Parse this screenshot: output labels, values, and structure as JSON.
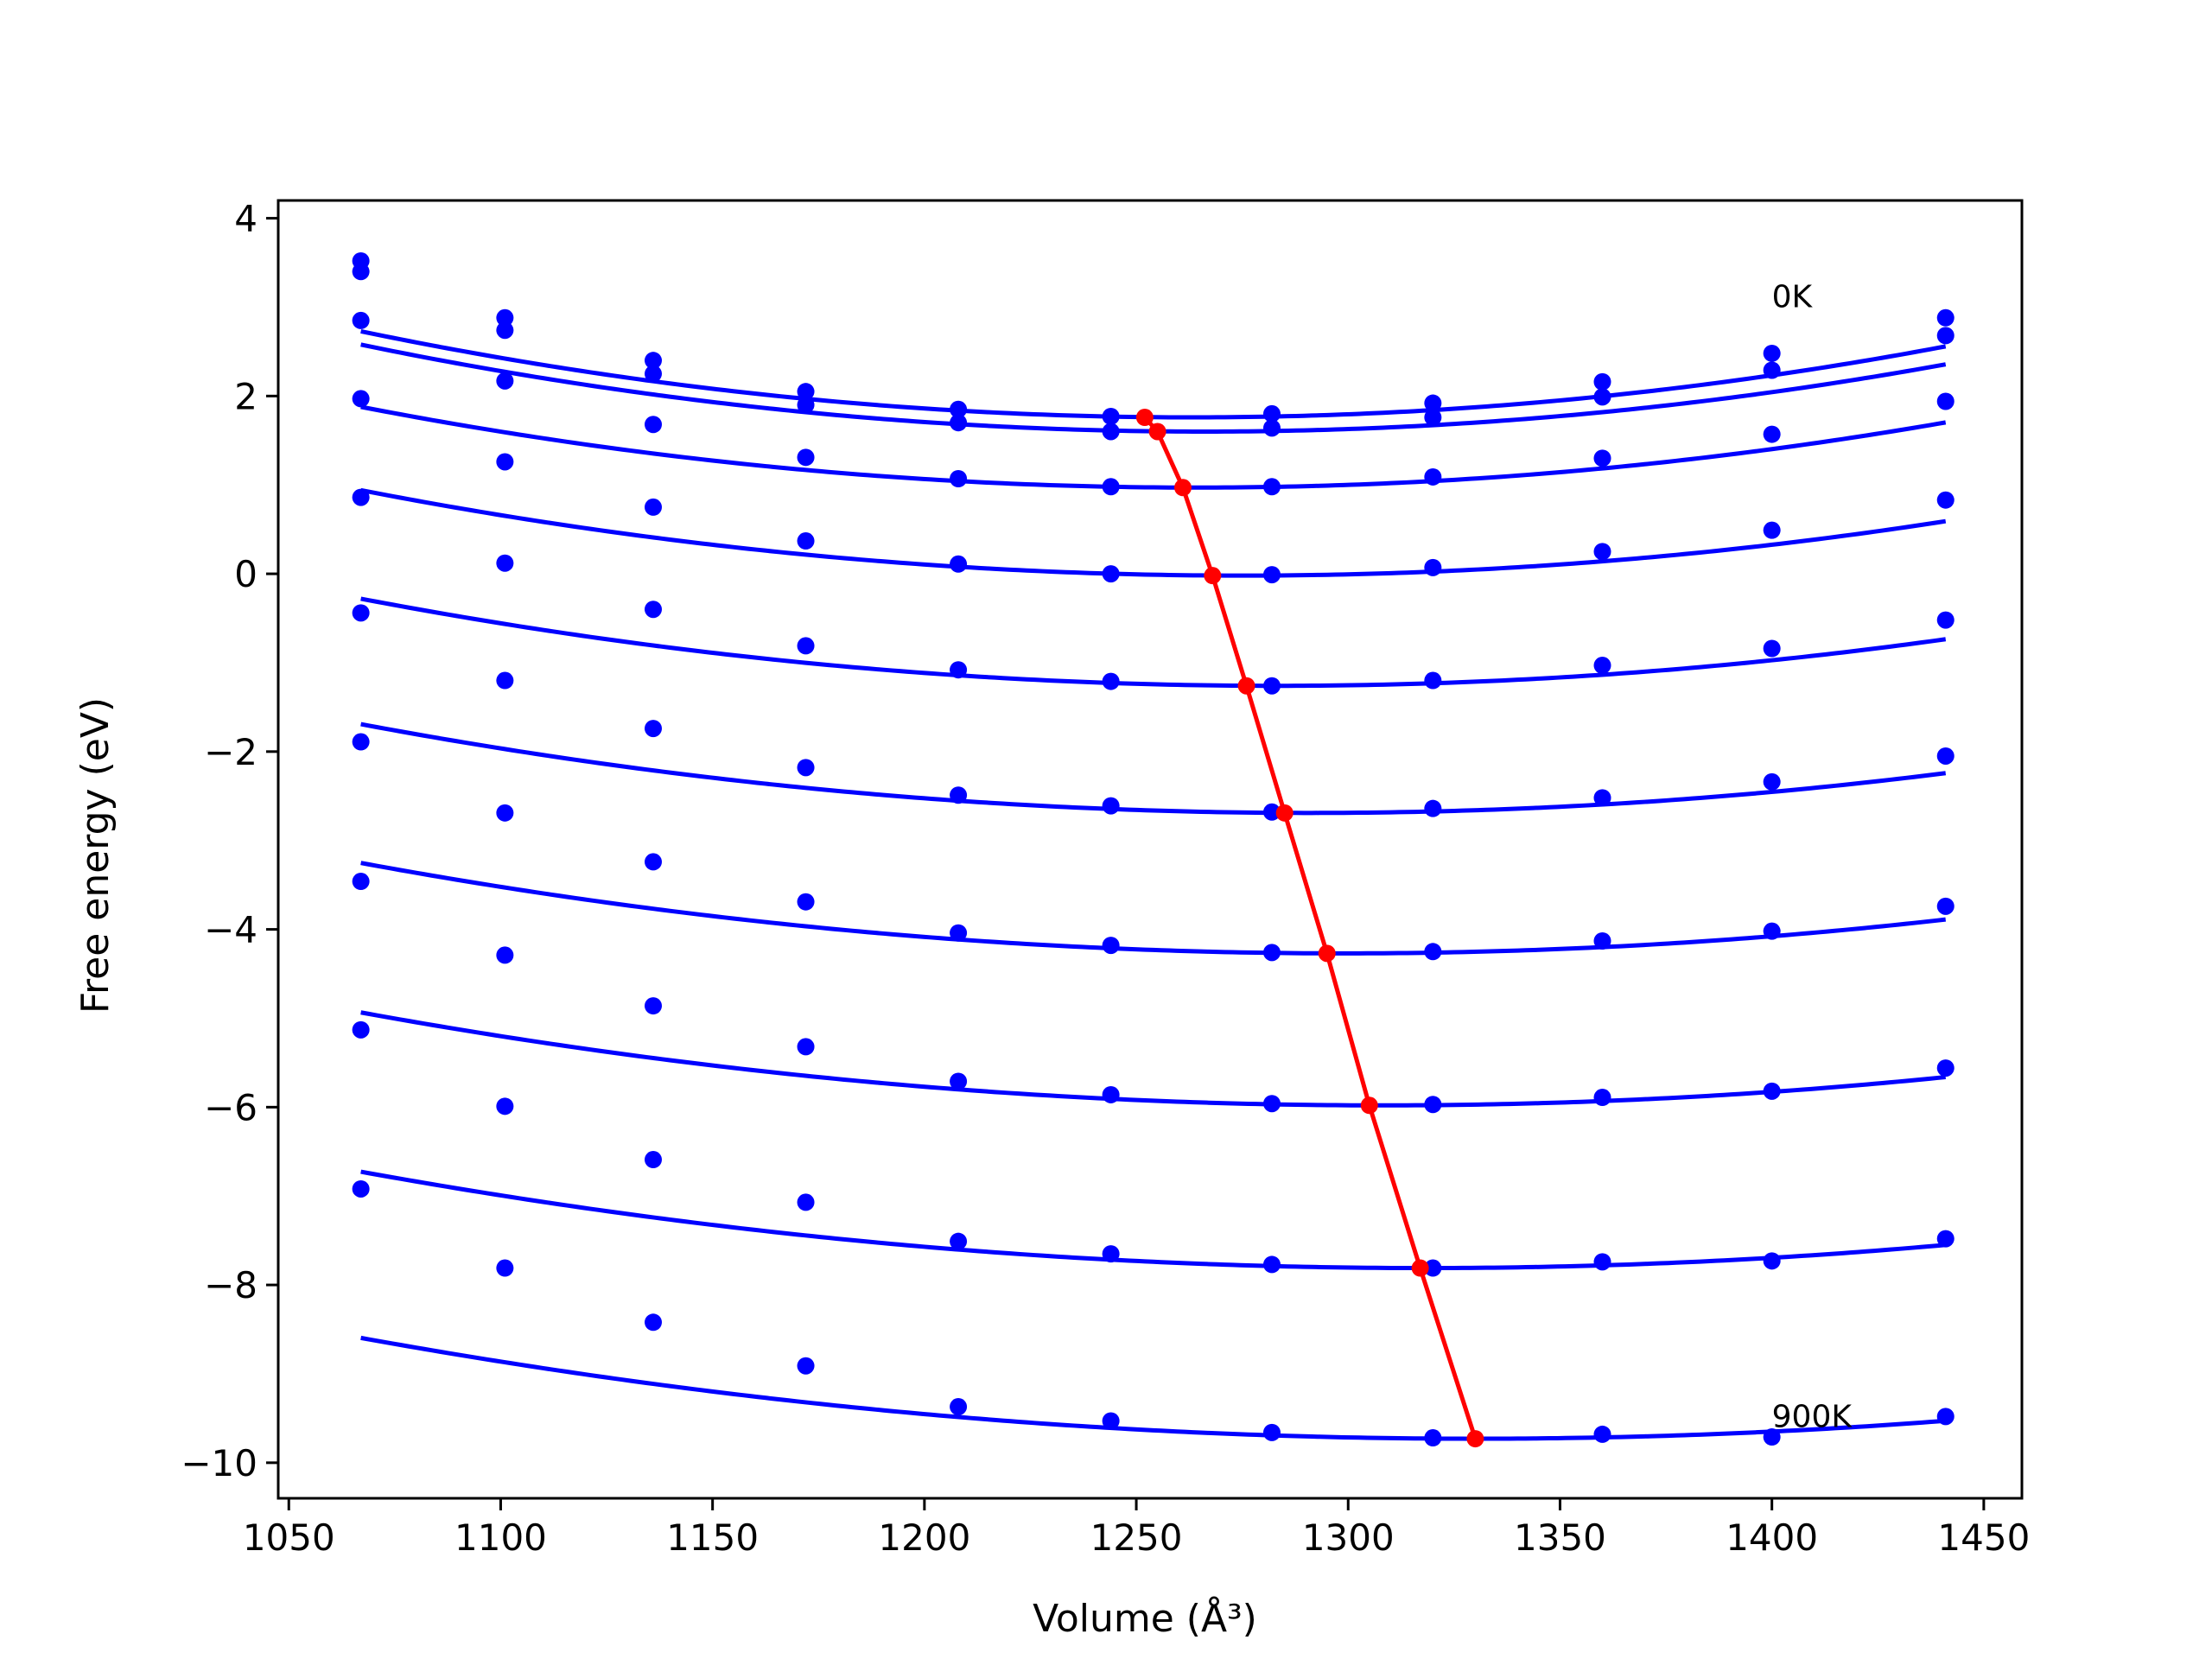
{
  "chart_data": {
    "type": "line",
    "xlabel": "Volume (Å³)",
    "ylabel": "Free energy (eV)",
    "xlim": [
      1047.5,
      1459
    ],
    "ylim": [
      -10.4,
      4.2
    ],
    "xticks": [
      1050,
      1100,
      1150,
      1200,
      1250,
      1300,
      1350,
      1400,
      1450
    ],
    "yticks": [
      4,
      2,
      0,
      -2,
      -4,
      -6,
      -8,
      -10
    ],
    "xtick_labels": [
      "1050",
      "1100",
      "1150",
      "1200",
      "1250",
      "1300",
      "1350",
      "1400",
      "1450"
    ],
    "ytick_labels": [
      "4",
      "2",
      "0",
      "−2",
      "−4",
      "−6",
      "−8",
      "−10"
    ],
    "x": [
      1067,
      1101,
      1136,
      1172,
      1208,
      1244,
      1282,
      1320,
      1360,
      1400,
      1441
    ],
    "grid": false,
    "legend": false,
    "colors": {
      "curves": "#0000ff",
      "minimum_line": "#ff0000",
      "frame": "#000000"
    },
    "annotations": [
      {
        "text": "0K",
        "x": 1400,
        "y": 3.0
      },
      {
        "text": "900K",
        "x": 1400,
        "y": -9.6
      }
    ],
    "series": [
      {
        "values": [
          3.52,
          2.88,
          2.4,
          2.05,
          1.85,
          1.77,
          1.8,
          1.92,
          2.16,
          2.48,
          2.88
        ],
        "fit": {
          "a": 2.52e-05,
          "v0": 1263,
          "e0": 1.76
        }
      },
      {
        "values": [
          3.4,
          2.74,
          2.25,
          1.9,
          1.7,
          1.6,
          1.64,
          1.76,
          1.99,
          2.29,
          2.68
        ],
        "fit": {
          "a": 2.47e-05,
          "v0": 1266,
          "e0": 1.6
        }
      },
      {
        "values": [
          2.85,
          2.17,
          1.68,
          1.31,
          1.07,
          0.98,
          0.98,
          1.09,
          1.3,
          1.57,
          1.94
        ],
        "fit": {
          "a": 2.34e-05,
          "v0": 1264,
          "e0": 0.97
        }
      },
      {
        "values": [
          1.97,
          1.26,
          0.75,
          0.37,
          0.11,
          0.0,
          -0.01,
          0.07,
          0.25,
          0.49,
          0.83
        ],
        "fit": {
          "a": 2.22e-05,
          "v0": 1275,
          "e0": -0.02
        }
      },
      {
        "values": [
          0.86,
          0.12,
          -0.4,
          -0.81,
          -1.08,
          -1.21,
          -1.26,
          -1.2,
          -1.03,
          -0.84,
          -0.52
        ],
        "fit": {
          "a": 2.1e-05,
          "v0": 1283,
          "e0": -1.26
        }
      },
      {
        "values": [
          -0.44,
          -1.2,
          -1.74,
          -2.18,
          -2.49,
          -2.61,
          -2.68,
          -2.64,
          -2.52,
          -2.34,
          -2.05
        ],
        "fit": {
          "a": 1.99e-05,
          "v0": 1291,
          "e0": -2.69
        }
      },
      {
        "values": [
          -1.89,
          -2.69,
          -3.24,
          -3.69,
          -4.04,
          -4.18,
          -4.26,
          -4.25,
          -4.13,
          -4.02,
          -3.74
        ],
        "fit": {
          "a": 1.89e-05,
          "v0": 1299,
          "e0": -4.27
        }
      },
      {
        "values": [
          -3.46,
          -4.29,
          -4.86,
          -5.32,
          -5.71,
          -5.86,
          -5.96,
          -5.97,
          -5.89,
          -5.82,
          -5.56
        ],
        "fit": {
          "a": 1.8e-05,
          "v0": 1308,
          "e0": -5.98
        }
      },
      {
        "values": [
          -5.13,
          -5.99,
          -6.59,
          -7.07,
          -7.51,
          -7.65,
          -7.77,
          -7.81,
          -7.74,
          -7.73,
          -7.48
        ],
        "fit": {
          "a": 1.72e-05,
          "v0": 1318,
          "e0": -7.81
        }
      },
      {
        "values": [
          -6.92,
          -7.81,
          -8.42,
          -8.91,
          -9.37,
          -9.53,
          -9.66,
          -9.72,
          -9.68,
          -9.71,
          -9.48
        ],
        "fit": {
          "a": 1.64e-05,
          "v0": 1330,
          "e0": -9.73
        }
      }
    ],
    "minimum_points": {
      "x": [
        1252,
        1255,
        1261,
        1268,
        1276,
        1285,
        1295,
        1305,
        1317,
        1330
      ],
      "y": [
        1.76,
        1.6,
        0.97,
        -0.02,
        -1.26,
        -2.69,
        -4.27,
        -5.98,
        -7.81,
        -9.73
      ]
    }
  }
}
